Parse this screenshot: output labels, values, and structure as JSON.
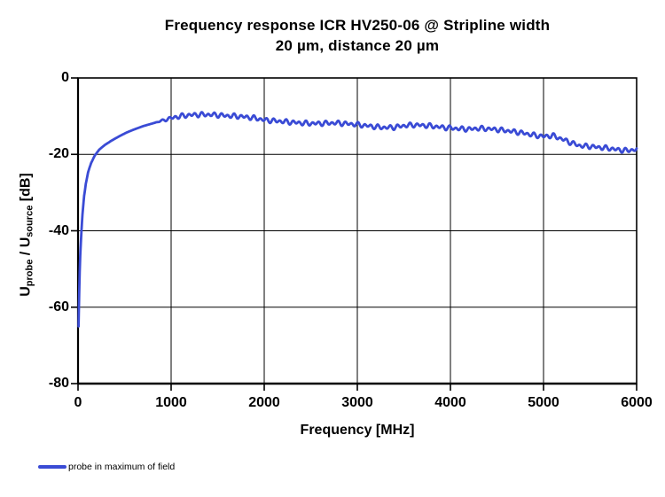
{
  "chart_data": {
    "type": "line",
    "title": "Frequency response ICR HV250-06 @ Stripline width 20 µm, distance 20 µm",
    "title_lines": [
      "Frequency response ICR HV250-06 @ Stripline width",
      "20 µm, distance 20 µm"
    ],
    "xlabel": "Frequency [MHz]",
    "ylabel_text": "U_probe / U_source [dB]",
    "ylabel_parts": [
      {
        "text": "U"
      },
      {
        "text": "probe",
        "sub": true
      },
      {
        "text": " / U"
      },
      {
        "text": "source",
        "sub": true
      },
      {
        "text": " [dB]"
      }
    ],
    "xlim": [
      0,
      6000
    ],
    "ylim": [
      -80,
      0
    ],
    "x_ticks": [
      0,
      1000,
      2000,
      3000,
      4000,
      5000,
      6000
    ],
    "y_ticks": [
      0,
      -20,
      -40,
      -60,
      -80
    ],
    "grid": {
      "x_gridlines_mhz": [
        1000,
        2000,
        3000,
        4000,
        5000
      ],
      "y_gridlines_db": [
        -20,
        -40,
        -60
      ],
      "visible": true
    },
    "legend_position": "bottom-left",
    "colors": {
      "background": "#FFFFFF",
      "axis": "#000000",
      "gridline": "#000000",
      "text": "#000000"
    },
    "series": [
      {
        "name": "probe in maximum of field",
        "color": "#3A4BD5",
        "points": [
          [
            6,
            -65
          ],
          [
            10,
            -59
          ],
          [
            14,
            -54
          ],
          [
            20,
            -49
          ],
          [
            28,
            -44
          ],
          [
            38,
            -39.5
          ],
          [
            50,
            -35
          ],
          [
            65,
            -31
          ],
          [
            85,
            -27.5
          ],
          [
            110,
            -24.5
          ],
          [
            140,
            -22.3
          ],
          [
            180,
            -20.3
          ],
          [
            230,
            -18.7
          ],
          [
            290,
            -17.5
          ],
          [
            360,
            -16.4
          ],
          [
            440,
            -15.3
          ],
          [
            520,
            -14.3
          ],
          [
            600,
            -13.5
          ],
          [
            700,
            -12.6
          ],
          [
            800,
            -11.9
          ],
          [
            900,
            -11.2
          ],
          [
            1000,
            -10.5
          ],
          [
            1100,
            -10.0
          ],
          [
            1200,
            -9.7
          ],
          [
            1300,
            -9.6
          ],
          [
            1400,
            -9.6
          ],
          [
            1500,
            -9.7
          ],
          [
            1600,
            -9.9
          ],
          [
            1700,
            -10.0
          ],
          [
            1800,
            -10.2
          ],
          [
            1900,
            -10.5
          ],
          [
            2000,
            -11.0
          ],
          [
            2100,
            -11.2
          ],
          [
            2200,
            -11.4
          ],
          [
            2300,
            -11.6
          ],
          [
            2400,
            -11.8
          ],
          [
            2500,
            -11.9
          ],
          [
            2600,
            -11.9
          ],
          [
            2700,
            -11.8
          ],
          [
            2800,
            -11.8
          ],
          [
            2900,
            -12.0
          ],
          [
            3000,
            -12.2
          ],
          [
            3100,
            -12.5
          ],
          [
            3200,
            -12.8
          ],
          [
            3300,
            -13.0
          ],
          [
            3400,
            -12.9
          ],
          [
            3500,
            -12.5
          ],
          [
            3600,
            -12.3
          ],
          [
            3700,
            -12.4
          ],
          [
            3800,
            -12.6
          ],
          [
            3900,
            -12.9
          ],
          [
            4000,
            -13.1
          ],
          [
            4100,
            -13.3
          ],
          [
            4200,
            -13.4
          ],
          [
            4300,
            -13.2
          ],
          [
            4400,
            -13.3
          ],
          [
            4500,
            -13.5
          ],
          [
            4600,
            -13.8
          ],
          [
            4700,
            -14.1
          ],
          [
            4800,
            -14.5
          ],
          [
            4900,
            -15.0
          ],
          [
            5000,
            -15.3
          ],
          [
            5100,
            -15.1
          ],
          [
            5200,
            -16.0
          ],
          [
            5300,
            -17.0
          ],
          [
            5400,
            -17.8
          ],
          [
            5500,
            -17.9
          ],
          [
            5600,
            -18.2
          ],
          [
            5700,
            -18.4
          ],
          [
            5800,
            -18.8
          ],
          [
            5900,
            -19.0
          ],
          [
            6000,
            -18.7
          ]
        ],
        "ripple": {
          "amplitude_db": 0.55,
          "period_mhz": 70,
          "secondary_period_mhz": 111,
          "start_mhz": 820,
          "ramp_mhz": 200
        }
      }
    ]
  }
}
